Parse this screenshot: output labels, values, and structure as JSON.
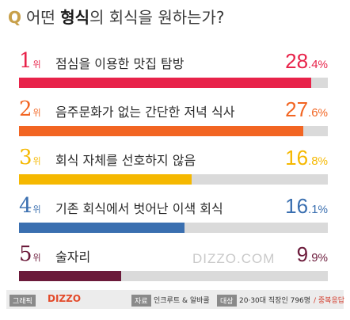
{
  "title": {
    "q": "Q",
    "pre": "어떤 ",
    "highlight": "형식",
    "post": "의 회식을 원하는가?"
  },
  "chart_data": {
    "type": "bar",
    "title": "어떤 형식의 회식을 원하는가?",
    "unit": "%",
    "xlim": [
      0,
      30
    ],
    "items": [
      {
        "rank": "1",
        "rank_suffix": "위",
        "label": "점심을 이용한 맛집 탐방",
        "int": "28",
        "dec": ".4",
        "value": 28.4,
        "color": "#e8234a"
      },
      {
        "rank": "2",
        "rank_suffix": "위",
        "label": "음주문화가 없는 간단한 저녁 식사",
        "int": "27",
        "dec": ".6",
        "value": 27.6,
        "color": "#f26522"
      },
      {
        "rank": "3",
        "rank_suffix": "위",
        "label": "회식 자체를 선호하지 않음",
        "int": "16",
        "dec": ".8",
        "value": 16.8,
        "color": "#f5b800"
      },
      {
        "rank": "4",
        "rank_suffix": "위",
        "label": "기존 회식에서 벗어난 이색 회식",
        "int": "16",
        "dec": ".1",
        "value": 16.1,
        "color": "#3a6fb0"
      },
      {
        "rank": "5",
        "rank_suffix": "위",
        "label": "술자리",
        "int": "9",
        "dec": ".9",
        "value": 9.9,
        "color": "#6b1a3a"
      }
    ]
  },
  "watermark": "DIZZO.COM",
  "footer": {
    "graphic_tag": "그래픽",
    "brand": "DIZZO",
    "source_tag": "자료",
    "source": "인크루트 & 알바콜",
    "target_tag": "대상",
    "target": "20·30대 직장인 796명",
    "note": "/ 중복응답"
  }
}
